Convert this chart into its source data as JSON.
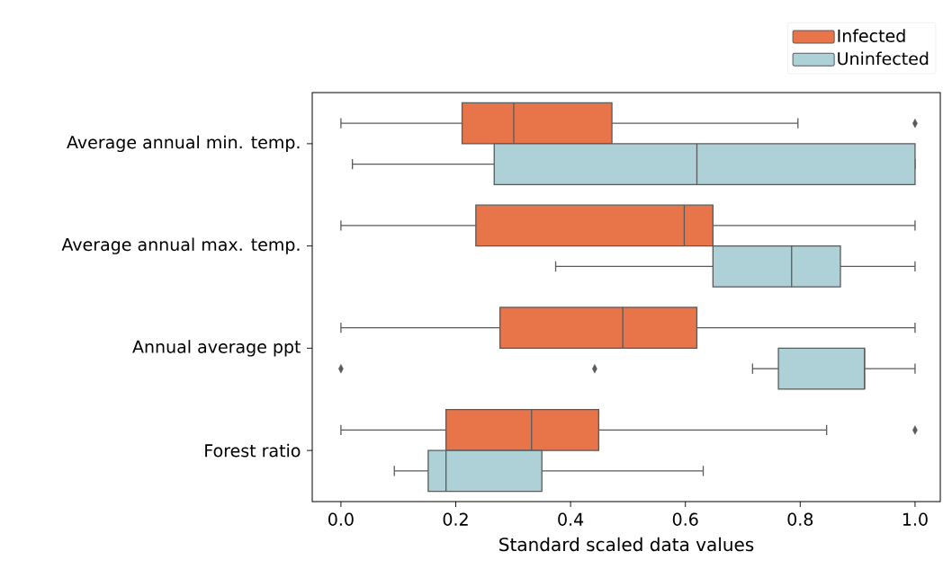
{
  "chart_data": {
    "type": "box",
    "orientation": "horizontal",
    "xlabel": "Standard scaled data values",
    "categories": [
      "Average annual min. temp.",
      "Average annual max. temp.",
      "Annual average ppt",
      "Forest ratio"
    ],
    "xlim": [
      -0.05,
      1.044
    ],
    "xticks": [
      {
        "value": 0,
        "label": "0.0"
      },
      {
        "value": 0.2,
        "label": "0.2"
      },
      {
        "value": 0.4,
        "label": "0.4"
      },
      {
        "value": 0.6,
        "label": "0.6"
      },
      {
        "value": 0.8,
        "label": "0.8"
      },
      {
        "value": 1.0,
        "label": "1.0"
      }
    ],
    "legend": "top right",
    "series": [
      {
        "name": "Infected",
        "color": "#e8744a",
        "boxes": [
          {
            "low": 0,
            "q1": 0.211,
            "median": 0.301,
            "q3": 0.472,
            "high": 0.796,
            "outliers": [
              1.0
            ]
          },
          {
            "low": 0,
            "q1": 0.235,
            "median": 0.598,
            "q3": 0.648,
            "high": 1.0
          },
          {
            "low": 0,
            "q1": 0.277,
            "median": 0.491,
            "q3": 0.62,
            "high": 1.0
          },
          {
            "low": 0,
            "q1": 0.183,
            "median": 0.332,
            "q3": 0.449,
            "high": 0.846,
            "outliers": [
              1.0
            ]
          }
        ]
      },
      {
        "name": "Uninfected",
        "color": "#add1d7",
        "boxes": [
          {
            "low": 0.02,
            "q1": 0.267,
            "median": 0.62,
            "q3": 1.0,
            "high": 1.0
          },
          {
            "low": 0.374,
            "q1": 0.648,
            "median": 0.785,
            "q3": 0.87,
            "high": 1.0
          },
          {
            "low": 0.717,
            "q1": 0.762,
            "median": 0.912,
            "q3": 0.912,
            "high": 1.0,
            "outliers": [
              0,
              0.442
            ]
          },
          {
            "low": 0.093,
            "q1": 0.152,
            "median": 0.183,
            "q3": 0.35,
            "high": 0.631
          }
        ]
      }
    ]
  }
}
